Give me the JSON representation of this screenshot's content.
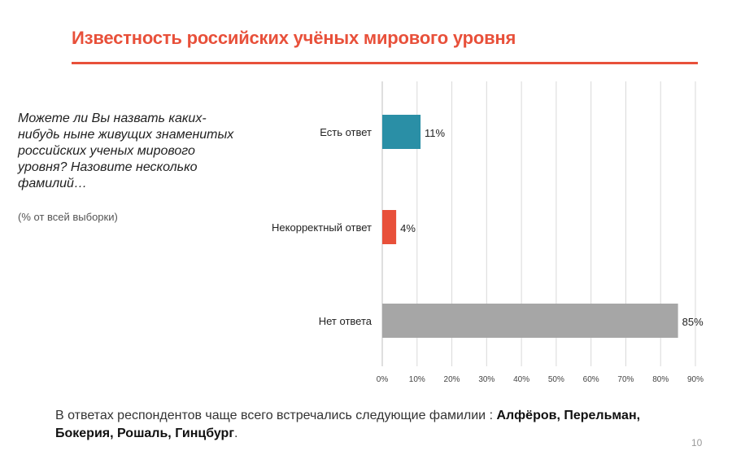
{
  "slide": {
    "title": "Известность российских учёных мирового уровня",
    "question": "Можете ли Вы назвать каких-нибудь ныне живущих знаменитых российских ученых мирового уровня? Назовите несколько фамилий…",
    "note": "(% от всей выборки)",
    "footer_prefix": "В ответах респондентов  чаще всего встречались следующие фамилии : ",
    "footer_names": "Алфёров, Перельман, Бокерия, Рошаль, Гинцбург",
    "footer_suffix": ".",
    "page_number": "10"
  },
  "colors": {
    "accent": "#e8503a",
    "teal": "#2a8fa6",
    "red": "#e8503a",
    "gray": "#a6a6a6",
    "grid": "#d9d9d9"
  },
  "chart_data": {
    "type": "bar",
    "orientation": "horizontal",
    "categories": [
      "Есть ответ",
      "Некорректный ответ",
      "Нет ответа"
    ],
    "values": [
      11,
      4,
      85
    ],
    "value_labels": [
      "11%",
      "4%",
      "85%"
    ],
    "bar_colors": [
      "#2a8fa6",
      "#e8503a",
      "#a6a6a6"
    ],
    "xlim": [
      0,
      90
    ],
    "x_ticks": [
      0,
      10,
      20,
      30,
      40,
      50,
      60,
      70,
      80,
      90
    ],
    "x_tick_labels": [
      "0%",
      "10%",
      "20%",
      "30%",
      "40%",
      "50%",
      "60%",
      "70%",
      "80%",
      "90%"
    ],
    "grid": true,
    "legend": "none"
  }
}
